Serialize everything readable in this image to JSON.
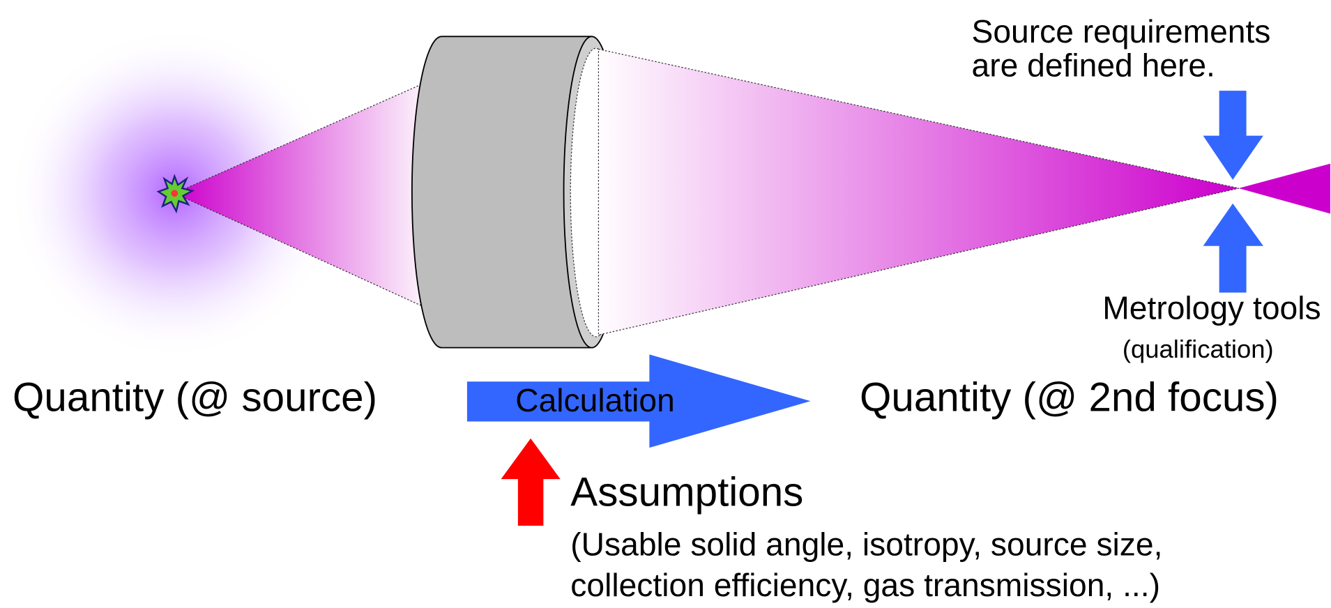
{
  "source_note": {
    "lines": [
      "Source requirements",
      "are defined here."
    ]
  },
  "metrology": {
    "label": "Metrology tools",
    "sublabel": "(qualification)"
  },
  "left_quantity": "Quantity (@ source)",
  "arrow_label": "Calculation",
  "right_quantity": "Quantity (@ 2nd focus)",
  "assumptions": {
    "title": "Assumptions",
    "lines": [
      "(Usable solid angle, isotropy, source size,",
      "collection efficiency, gas transmission, ...)"
    ]
  }
}
